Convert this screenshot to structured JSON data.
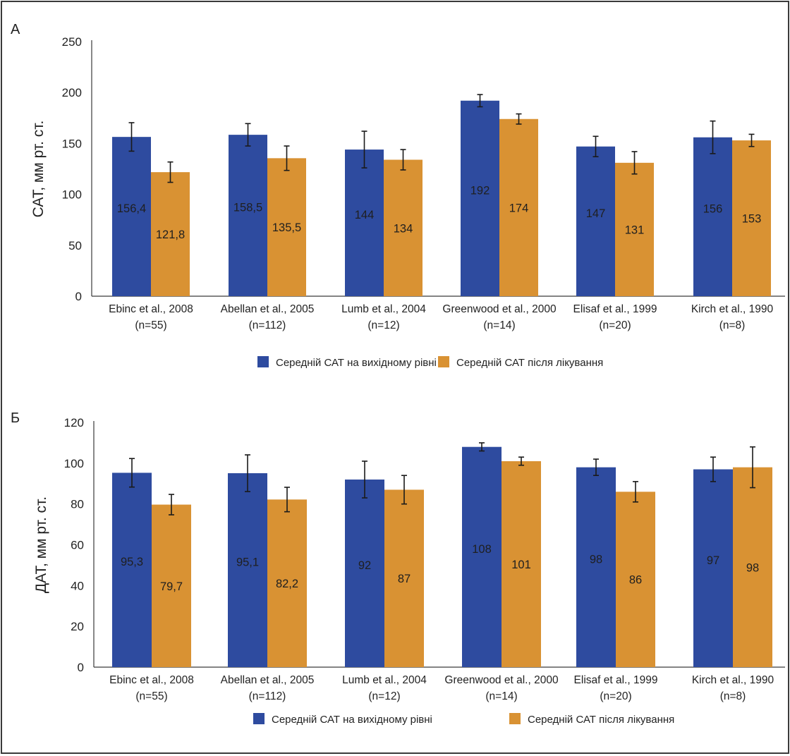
{
  "chart_data": [
    {
      "panel_label": "А",
      "type": "bar",
      "ylabel": "САТ, мм рт. ст.",
      "ylim": [
        0,
        250
      ],
      "yticks": [
        0,
        50,
        100,
        150,
        200,
        250
      ],
      "categories": [
        {
          "name": "Ebinc et al., 2008",
          "n": "(n=55)"
        },
        {
          "name": "Abellan et al., 2005",
          "n": "(n=112)"
        },
        {
          "name": "Lumb et al., 2004",
          "n": "(n=12)"
        },
        {
          "name": "Greenwood et al., 2000",
          "n": "(n=14)"
        },
        {
          "name": "Elisaf et al., 1999",
          "n": "(n=20)"
        },
        {
          "name": "Kirch et al., 1990",
          "n": "(n=8)"
        }
      ],
      "series": [
        {
          "name": "Середній САТ на вихідному рівні",
          "color": "#2e4b9f",
          "values": [
            156.4,
            158.5,
            144,
            192,
            147,
            156
          ],
          "labels": [
            "156,4",
            "158,5",
            "144",
            "192",
            "147",
            "156"
          ],
          "error": [
            14,
            11,
            18,
            6,
            10,
            16
          ]
        },
        {
          "name": "Середній САТ після лікування",
          "color": "#d99233",
          "values": [
            121.8,
            135.5,
            134,
            174,
            131,
            153
          ],
          "labels": [
            "121,8",
            "135,5",
            "134",
            "174",
            "131",
            "153"
          ],
          "error": [
            10,
            12,
            10,
            5,
            11,
            6
          ]
        }
      ],
      "grid": false,
      "legend_position": "bottom-center"
    },
    {
      "panel_label": "Б",
      "type": "bar",
      "ylabel": "ДАТ, мм рт. ст.",
      "ylim": [
        0,
        120
      ],
      "yticks": [
        0,
        20,
        40,
        60,
        80,
        100,
        120
      ],
      "categories": [
        {
          "name": "Ebinc et al., 2008",
          "n": "(n=55)"
        },
        {
          "name": "Abellan et al., 2005",
          "n": "(n=112)"
        },
        {
          "name": "Lumb et al., 2004",
          "n": "(n=12)"
        },
        {
          "name": "Greenwood et al., 2000",
          "n": "(n=14)"
        },
        {
          "name": "Elisaf et al., 1999",
          "n": "(n=20)"
        },
        {
          "name": "Kirch et al., 1990",
          "n": "(n=8)"
        }
      ],
      "series": [
        {
          "name": "Середній САТ на вихідному рівні",
          "color": "#2e4b9f",
          "values": [
            95.3,
            95.1,
            92,
            108,
            98,
            97
          ],
          "labels": [
            "95,3",
            "95,1",
            "92",
            "108",
            "98",
            "97"
          ],
          "error": [
            7,
            9,
            9,
            2,
            4,
            6
          ]
        },
        {
          "name": "Середній САТ після лікування",
          "color": "#d99233",
          "values": [
            79.7,
            82.2,
            87,
            101,
            86,
            98
          ],
          "labels": [
            "79,7",
            "82,2",
            "87",
            "101",
            "86",
            "98"
          ],
          "error": [
            5,
            6,
            7,
            2,
            5,
            10
          ]
        }
      ],
      "grid": false,
      "legend_position": "bottom-center"
    }
  ]
}
